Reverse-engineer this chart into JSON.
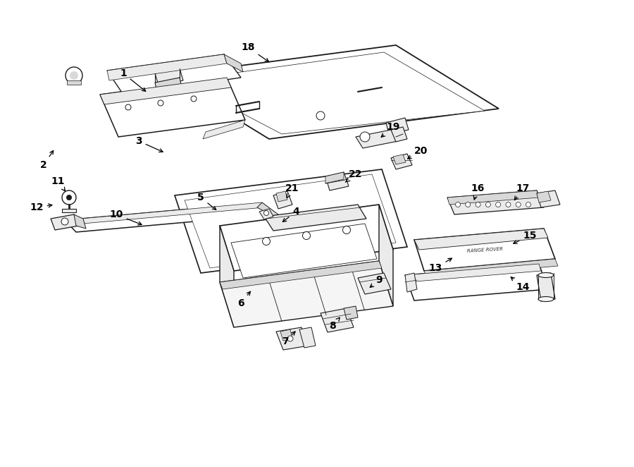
{
  "bg_color": "#ffffff",
  "lc": "#1a1a1a",
  "lw_main": 1.1,
  "lw_thin": 0.6,
  "fig_w": 9.0,
  "fig_h": 6.62,
  "dpi": 100,
  "parts_label": [
    [
      1,
      1.75,
      5.58,
      2.1,
      5.3
    ],
    [
      2,
      0.62,
      4.28,
      0.78,
      4.52
    ],
    [
      3,
      1.97,
      4.62,
      2.35,
      4.45
    ],
    [
      4,
      4.2,
      3.62,
      3.98,
      3.45
    ],
    [
      5,
      2.85,
      3.82,
      3.1,
      3.62
    ],
    [
      6,
      3.42,
      2.32,
      3.58,
      2.52
    ],
    [
      7,
      4.05,
      1.78,
      4.22,
      1.95
    ],
    [
      8,
      4.72,
      2.0,
      4.85,
      2.15
    ],
    [
      9,
      5.38,
      2.65,
      5.22,
      2.52
    ],
    [
      10,
      1.65,
      3.58,
      2.05,
      3.42
    ],
    [
      11,
      0.82,
      4.05,
      0.95,
      3.88
    ],
    [
      12,
      0.52,
      3.68,
      0.78,
      3.72
    ],
    [
      13,
      6.18,
      2.82,
      6.45,
      2.98
    ],
    [
      14,
      7.42,
      2.55,
      7.22,
      2.72
    ],
    [
      15,
      7.52,
      3.28,
      7.25,
      3.15
    ],
    [
      16,
      6.78,
      3.95,
      6.72,
      3.75
    ],
    [
      17,
      7.42,
      3.95,
      7.28,
      3.75
    ],
    [
      18,
      3.52,
      5.95,
      3.85,
      5.72
    ],
    [
      19,
      5.58,
      4.82,
      5.38,
      4.65
    ],
    [
      20,
      5.98,
      4.48,
      5.75,
      4.35
    ],
    [
      21,
      4.15,
      3.95,
      4.05,
      3.78
    ],
    [
      22,
      5.05,
      4.15,
      4.88,
      4.02
    ]
  ]
}
